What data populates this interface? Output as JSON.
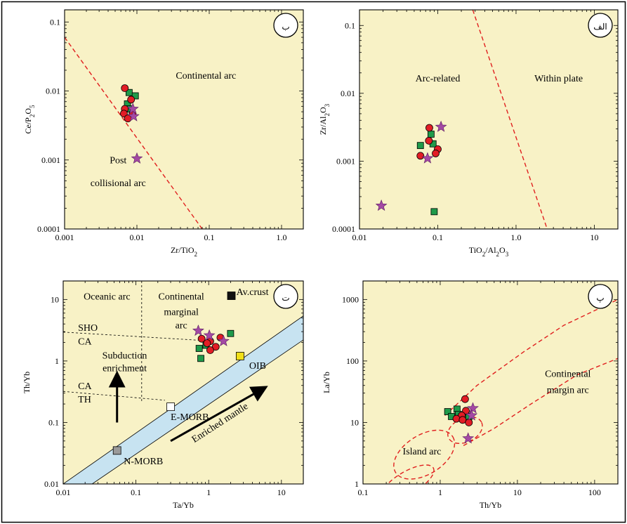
{
  "colors": {
    "panel_bg": "#f8f2c6",
    "border": "#000000",
    "boundary": "#e0201f",
    "circle": "#e21d25",
    "square": "#1f9a4a",
    "star": "#a349a4",
    "band": "#c7e3f1",
    "morb_n": "#9a9a9a",
    "oib": "#f1df17",
    "crust": "#111111"
  },
  "chart_data": [
    {
      "id": "b",
      "type": "scatter",
      "panel_label": "ب",
      "xscale": "log",
      "yscale": "log",
      "xlim": [
        0.001,
        2
      ],
      "ylim": [
        0.0001,
        0.15
      ],
      "xlabel": "Zr/TiO2",
      "ylabel": "Ce/P2O5",
      "xticks": [
        {
          "v": 0.001,
          "label": "0.001"
        },
        {
          "v": 0.01,
          "label": "0.01"
        },
        {
          "v": 0.1,
          "label": "0.1"
        },
        {
          "v": 1,
          "label": "1.0"
        }
      ],
      "yticks": [
        {
          "v": 0.0001,
          "label": "0.0001"
        },
        {
          "v": 0.001,
          "label": "0.001"
        },
        {
          "v": 0.01,
          "label": "0.01"
        },
        {
          "v": 0.1,
          "label": "0.1"
        }
      ],
      "boundaries": [
        {
          "points": [
            [
              0.001,
              0.06
            ],
            [
              0.08,
              0.0001
            ]
          ]
        }
      ],
      "field_labels": [
        {
          "text": "Continental arc",
          "x": 0.09,
          "y": 0.015
        },
        {
          "text": "Post",
          "x": 0.0055,
          "y": 0.0009
        },
        {
          "text": "collisional arc",
          "x": 0.0055,
          "y": 0.00042
        }
      ],
      "circles": [
        [
          0.0068,
          0.011
        ],
        [
          0.0083,
          0.0075
        ],
        [
          0.0068,
          0.0055
        ],
        [
          0.0066,
          0.0047
        ],
        [
          0.0075,
          0.004
        ],
        [
          0.0087,
          0.0047
        ]
      ],
      "squares": [
        [
          0.0078,
          0.0095
        ],
        [
          0.0095,
          0.0085
        ],
        [
          0.0074,
          0.0065
        ],
        [
          0.0081,
          0.0055
        ]
      ],
      "stars": [
        [
          0.009,
          0.0043
        ],
        [
          0.0088,
          0.0055
        ],
        [
          0.01,
          0.00105
        ]
      ]
    },
    {
      "id": "alef",
      "type": "scatter",
      "panel_label": "الف",
      "xscale": "log",
      "yscale": "log",
      "xlim": [
        0.01,
        20
      ],
      "ylim": [
        0.0001,
        0.17
      ],
      "xlabel": "TiO2/Al2O3",
      "ylabel": "Zr/Al2O3",
      "xticks": [
        {
          "v": 0.01,
          "label": "0.01"
        },
        {
          "v": 0.1,
          "label": "0.1"
        },
        {
          "v": 1,
          "label": "1.0"
        },
        {
          "v": 10,
          "label": "10"
        }
      ],
      "yticks": [
        {
          "v": 0.0001,
          "label": "0.0001"
        },
        {
          "v": 0.001,
          "label": "0.001"
        },
        {
          "v": 0.01,
          "label": "0.01"
        },
        {
          "v": 0.1,
          "label": "0.1"
        }
      ],
      "boundaries": [
        {
          "points": [
            [
              0.28,
              0.17
            ],
            [
              2.5,
              0.0001
            ]
          ]
        }
      ],
      "field_labels": [
        {
          "text": "Arc-related",
          "x": 0.1,
          "y": 0.015
        },
        {
          "text": "Within plate",
          "x": 3.5,
          "y": 0.015
        }
      ],
      "circles": [
        [
          0.078,
          0.0031
        ],
        [
          0.077,
          0.002
        ],
        [
          0.1,
          0.0015
        ],
        [
          0.06,
          0.0012
        ],
        [
          0.094,
          0.0013
        ]
      ],
      "squares": [
        [
          0.082,
          0.0025
        ],
        [
          0.06,
          0.0017
        ],
        [
          0.087,
          0.0018
        ],
        [
          0.09,
          0.00018
        ]
      ],
      "stars": [
        [
          0.11,
          0.0032
        ],
        [
          0.074,
          0.0011
        ],
        [
          0.019,
          0.00022
        ]
      ]
    },
    {
      "id": "t",
      "type": "scatter",
      "panel_label": "ت",
      "xscale": "log",
      "yscale": "log",
      "xlim": [
        0.01,
        20
      ],
      "ylim": [
        0.01,
        20
      ],
      "xlabel": "Ta/Yb",
      "ylabel": "Th/Yb",
      "xticks": [
        {
          "v": 0.01,
          "label": "0.01"
        },
        {
          "v": 0.1,
          "label": "0.1"
        },
        {
          "v": 1,
          "label": "1"
        },
        {
          "v": 10,
          "label": "10"
        }
      ],
      "yticks": [
        {
          "v": 0.01,
          "label": "0.01"
        },
        {
          "v": 0.1,
          "label": "0.1"
        },
        {
          "v": 1,
          "label": "1"
        },
        {
          "v": 10,
          "label": "10"
        }
      ],
      "band": {
        "upper": [
          [
            0.01,
            0.01
          ],
          [
            20,
            5.4
          ]
        ],
        "lower": [
          [
            0.025,
            0.01
          ],
          [
            20,
            2.2
          ]
        ]
      },
      "divider_lines": [
        {
          "points": [
            [
              0.01,
              2.95
            ],
            [
              1.2,
              2.1
            ]
          ]
        },
        {
          "points": [
            [
              0.01,
              0.32
            ],
            [
              0.25,
              0.23
            ]
          ]
        },
        {
          "points": [
            [
              0.12,
              20
            ],
            [
              0.12,
              0.22
            ]
          ]
        }
      ],
      "field_labels": [
        {
          "text": "Oceanic arc",
          "x": 0.04,
          "y": 10,
          "anchor": "middle"
        },
        {
          "text": "Continental",
          "x": 0.42,
          "y": 10,
          "anchor": "middle"
        },
        {
          "text": "marginal",
          "x": 0.42,
          "y": 5.6,
          "anchor": "middle"
        },
        {
          "text": "arc",
          "x": 0.42,
          "y": 3.4,
          "anchor": "middle"
        },
        {
          "text": "SHO",
          "x": 0.016,
          "y": 3.1,
          "anchor": "start"
        },
        {
          "text": "CA",
          "x": 0.016,
          "y": 1.85,
          "anchor": "start"
        },
        {
          "text": "Subduction",
          "x": 0.07,
          "y": 1.1,
          "anchor": "middle"
        },
        {
          "text": "enrichment",
          "x": 0.07,
          "y": 0.68,
          "anchor": "middle"
        },
        {
          "text": "CA",
          "x": 0.016,
          "y": 0.35,
          "anchor": "start"
        },
        {
          "text": "TH",
          "x": 0.016,
          "y": 0.21,
          "anchor": "start"
        }
      ],
      "reference_points": [
        {
          "label": "Av.crust",
          "x": 2.05,
          "y": 11.5,
          "fill": "#111111",
          "label_x": 2.4,
          "label_y": 11.8
        },
        {
          "label": "OIB",
          "x": 2.7,
          "y": 1.2,
          "fill": "#f1df17",
          "label_x": 3.6,
          "label_y": 0.75
        },
        {
          "label": "E-MORB",
          "x": 0.3,
          "y": 0.18,
          "fill": "#ffffff",
          "label_x": 0.3,
          "label_y": 0.11
        },
        {
          "label": "N-MORB",
          "x": 0.055,
          "y": 0.035,
          "fill": "#9a9a9a",
          "label_x": 0.068,
          "label_y": 0.021
        }
      ],
      "arrows": [
        {
          "from": [
            0.055,
            0.1
          ],
          "to": [
            0.055,
            0.55
          ]
        },
        {
          "from": [
            0.3,
            0.05
          ],
          "to": [
            5.5,
            0.35
          ]
        }
      ],
      "arrow_label": {
        "text": "Enriched mantle",
        "x": 1.5,
        "y": 0.09
      },
      "circles": [
        [
          0.8,
          2.3
        ],
        [
          1.05,
          2.1
        ],
        [
          1.45,
          2.4
        ],
        [
          0.95,
          1.95
        ],
        [
          1.25,
          1.7
        ],
        [
          1.05,
          1.5
        ]
      ],
      "squares": [
        [
          2.0,
          2.8
        ],
        [
          0.74,
          1.6
        ],
        [
          0.92,
          1.8
        ],
        [
          0.78,
          1.1
        ]
      ],
      "stars": [
        [
          0.72,
          3.1
        ],
        [
          1.02,
          2.6
        ],
        [
          1.6,
          2.1
        ]
      ]
    },
    {
      "id": "p",
      "type": "scatter",
      "panel_label": "پ",
      "xscale": "log",
      "yscale": "log",
      "xlim": [
        0.1,
        200
      ],
      "ylim": [
        1,
        2000
      ],
      "xlabel": "Th/Yb",
      "ylabel": "La/Yb",
      "xticks": [
        {
          "v": 0.1,
          "label": "0.1"
        },
        {
          "v": 1,
          "label": "1"
        },
        {
          "v": 10,
          "label": "10"
        },
        {
          "v": 100,
          "label": "100"
        }
      ],
      "yticks": [
        {
          "v": 1,
          "label": "1"
        },
        {
          "v": 10,
          "label": "10"
        },
        {
          "v": 100,
          "label": "100"
        },
        {
          "v": 1000,
          "label": "1000"
        }
      ],
      "field_labels": [
        {
          "text": "Continental",
          "x": 45,
          "y": 55
        },
        {
          "text": "margin arc",
          "x": 45,
          "y": 30
        },
        {
          "text": "Island arc",
          "x": 0.58,
          "y": 3.0
        }
      ],
      "circles": [
        [
          2.1,
          24
        ],
        [
          2.15,
          15.5
        ],
        [
          1.9,
          13
        ],
        [
          1.62,
          11.5
        ],
        [
          1.95,
          11
        ],
        [
          2.35,
          10
        ]
      ],
      "squares": [
        [
          1.25,
          15
        ],
        [
          1.4,
          12.5
        ],
        [
          1.65,
          16.5
        ],
        [
          1.72,
          13.5
        ],
        [
          2.35,
          12.5
        ]
      ],
      "stars": [
        [
          2.65,
          17
        ],
        [
          2.55,
          13
        ],
        [
          2.3,
          5.5
        ]
      ]
    }
  ]
}
